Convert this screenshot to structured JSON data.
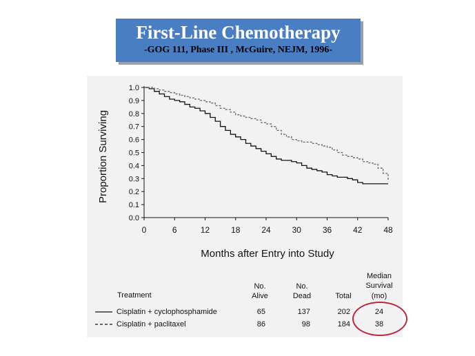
{
  "slide": {
    "title": "First-Line Chemotherapy",
    "subtitle": "-GOG 111, Phase III , McGuire, NEJM, 1996-"
  },
  "table": {
    "headers": {
      "treatment": "Treatment",
      "alive": [
        "No.",
        "Alive"
      ],
      "dead": [
        "No.",
        "Dead"
      ],
      "total": "Total",
      "median": [
        "Median",
        "Survival",
        "(mo)"
      ]
    },
    "rows": [
      {
        "line": "solid",
        "treatment": "Cisplatin + cyclophosphamide",
        "alive": "65",
        "dead": "137",
        "total": "202",
        "median": "24"
      },
      {
        "line": "dashed",
        "treatment": "Cisplatin + paclitaxel",
        "alive": "86",
        "dead": "98",
        "total": "184",
        "median": "38"
      }
    ]
  },
  "chart_data": {
    "type": "line",
    "title": "",
    "xlabel": "Months after Entry into Study",
    "ylabel": "Proportion Surviving",
    "xlim": [
      0,
      48
    ],
    "ylim": [
      0,
      1.0
    ],
    "xticks": [
      "0",
      "6",
      "12",
      "18",
      "24",
      "30",
      "36",
      "42",
      "48"
    ],
    "yticks": [
      "0.0",
      "0.1",
      "0.2",
      "0.3",
      "0.4",
      "0.5",
      "0.6",
      "0.7",
      "0.8",
      "0.9",
      "1.0"
    ],
    "grid": false,
    "series": [
      {
        "name": "Cisplatin + cyclophosphamide",
        "style": "solid",
        "color": "#111111",
        "x": [
          0,
          1,
          2,
          3,
          4,
          5,
          6,
          7,
          8,
          9,
          10,
          11,
          12,
          13,
          14,
          15,
          16,
          17,
          18,
          19,
          20,
          21,
          22,
          23,
          24,
          25,
          26,
          27,
          28,
          29,
          30,
          31,
          32,
          33,
          34,
          35,
          36,
          37,
          38,
          39,
          40,
          41,
          42,
          43,
          44,
          45,
          46,
          47,
          48
        ],
        "y": [
          1.0,
          0.99,
          0.97,
          0.95,
          0.93,
          0.91,
          0.9,
          0.89,
          0.87,
          0.85,
          0.84,
          0.82,
          0.8,
          0.77,
          0.74,
          0.7,
          0.67,
          0.64,
          0.62,
          0.6,
          0.57,
          0.55,
          0.53,
          0.51,
          0.49,
          0.47,
          0.45,
          0.44,
          0.44,
          0.43,
          0.42,
          0.4,
          0.38,
          0.37,
          0.36,
          0.35,
          0.33,
          0.32,
          0.31,
          0.31,
          0.3,
          0.29,
          0.27,
          0.26,
          0.26,
          0.26,
          0.26,
          0.26,
          0.26
        ]
      },
      {
        "name": "Cisplatin + paclitaxel",
        "style": "dashed",
        "color": "#666666",
        "x": [
          0,
          1,
          2,
          3,
          4,
          5,
          6,
          7,
          8,
          9,
          10,
          11,
          12,
          13,
          14,
          15,
          16,
          17,
          18,
          19,
          20,
          21,
          22,
          23,
          24,
          25,
          26,
          27,
          28,
          29,
          30,
          31,
          32,
          33,
          34,
          35,
          36,
          37,
          38,
          39,
          40,
          41,
          42,
          43,
          44,
          45,
          46,
          47,
          48
        ],
        "y": [
          1.0,
          1.0,
          0.99,
          0.98,
          0.97,
          0.96,
          0.95,
          0.94,
          0.93,
          0.92,
          0.91,
          0.9,
          0.89,
          0.88,
          0.86,
          0.84,
          0.83,
          0.81,
          0.79,
          0.78,
          0.77,
          0.76,
          0.75,
          0.73,
          0.72,
          0.7,
          0.67,
          0.64,
          0.62,
          0.6,
          0.59,
          0.58,
          0.58,
          0.57,
          0.56,
          0.55,
          0.54,
          0.52,
          0.5,
          0.48,
          0.47,
          0.46,
          0.45,
          0.43,
          0.42,
          0.41,
          0.38,
          0.34,
          0.28
        ]
      }
    ]
  }
}
